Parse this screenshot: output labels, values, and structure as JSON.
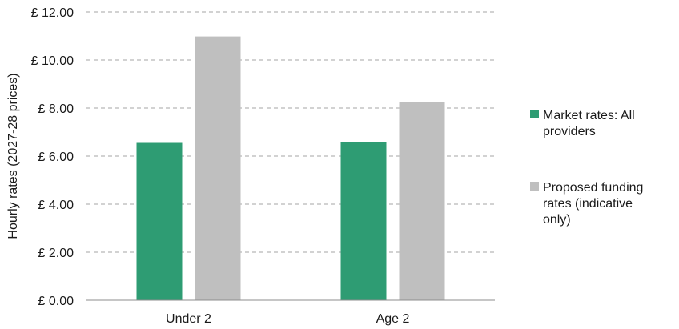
{
  "chart_data": {
    "type": "bar",
    "title": "",
    "xlabel": "",
    "ylabel": "Hourly rates (2027-28 prices)",
    "categories": [
      "Under 2",
      "Age 2"
    ],
    "y_ticks": [
      "£ 0.00",
      "£ 2.00",
      "£ 4.00",
      "£ 6.00",
      "£ 8.00",
      "£ 10.00",
      "£ 12.00"
    ],
    "ylim": [
      0,
      12
    ],
    "grid": true,
    "legend_position": "right",
    "series": [
      {
        "name": "Market rates: All providers",
        "legend_lines": [
          "Market rates: All",
          "providers"
        ],
        "color": "#2e9c73",
        "values": [
          6.55,
          6.58
        ]
      },
      {
        "name": "Proposed funding rates (indicative only)",
        "legend_lines": [
          "Proposed funding",
          "rates (indicative",
          "only)"
        ],
        "color": "#bfbfbf",
        "values": [
          10.98,
          8.25
        ]
      }
    ]
  }
}
